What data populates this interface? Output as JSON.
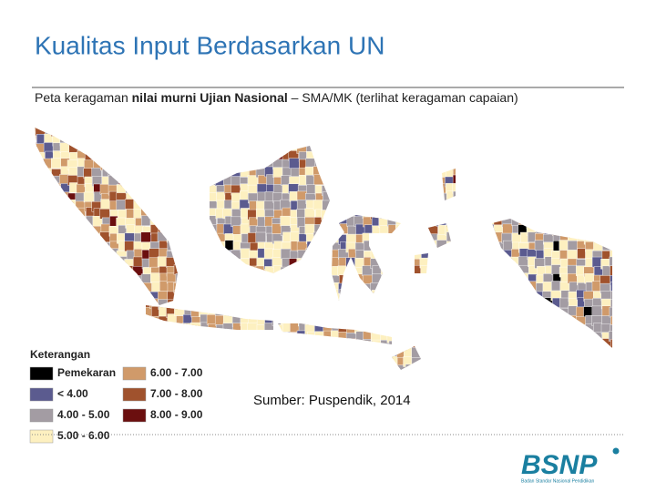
{
  "header": {
    "title": "Kualitas Input Berdasarkan UN",
    "subtitle": {
      "pre": "Peta keragaman ",
      "bold": "nilai murni Ujian Nasional",
      "post": " – SMA/MK (terlihat keragaman capaian)"
    }
  },
  "legend": {
    "title": "Keterangan",
    "items": [
      {
        "label": "Pemekaran",
        "color": "#000000"
      },
      {
        "label": "< 4.00",
        "color": "#5b5b8f"
      },
      {
        "label": "4.00 - 5.00",
        "color": "#a39ca3"
      },
      {
        "label": "5.00 - 6.00",
        "color": "#fdf0c0"
      },
      {
        "label": "6.00 - 7.00",
        "color": "#d09a6a"
      },
      {
        "label": "7.00 - 8.00",
        "color": "#a0522d"
      },
      {
        "label": "8.00 - 9.00",
        "color": "#6b0f0f"
      }
    ]
  },
  "source": "Sumber: Puspendik, 2014",
  "logo": {
    "name": "BSNP",
    "caption": "Badan Standar Nasional Pendidikan"
  }
}
